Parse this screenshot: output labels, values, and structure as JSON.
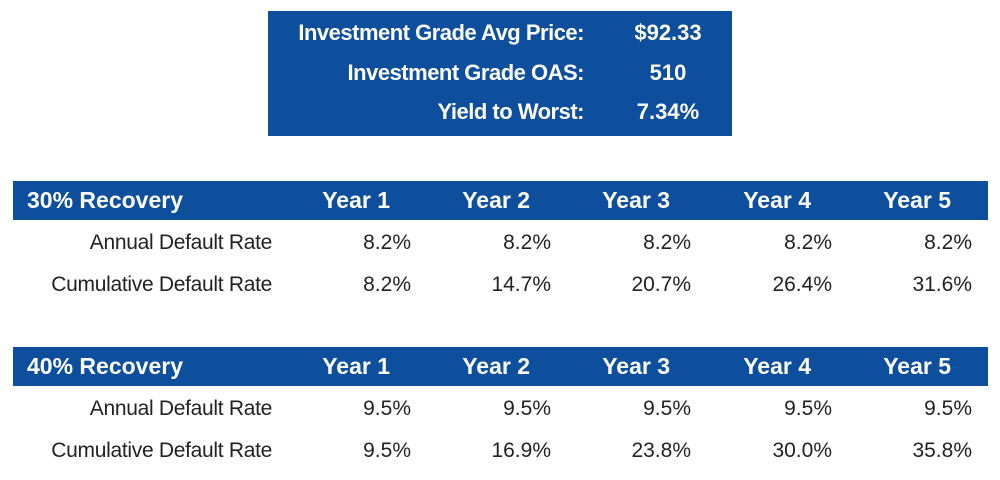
{
  "summary": {
    "rows": [
      {
        "label": "Investment Grade Avg Price:",
        "value": "$92.33"
      },
      {
        "label": "Investment Grade OAS:",
        "value": "510"
      },
      {
        "label": "Yield to Worst:",
        "value": "7.34%"
      }
    ]
  },
  "tables": [
    {
      "title": "30% Recovery",
      "years": [
        "Year 1",
        "Year 2",
        "Year 3",
        "Year 4",
        "Year 5"
      ],
      "rows": [
        {
          "label": "Annual Default Rate",
          "values": [
            "8.2%",
            "8.2%",
            "8.2%",
            "8.2%",
            "8.2%"
          ]
        },
        {
          "label": "Cumulative Default Rate",
          "values": [
            "8.2%",
            "14.7%",
            "20.7%",
            "26.4%",
            "31.6%"
          ]
        }
      ]
    },
    {
      "title": "40% Recovery",
      "years": [
        "Year 1",
        "Year 2",
        "Year 3",
        "Year 4",
        "Year 5"
      ],
      "rows": [
        {
          "label": "Annual Default Rate",
          "values": [
            "9.5%",
            "9.5%",
            "9.5%",
            "9.5%",
            "9.5%"
          ]
        },
        {
          "label": "Cumulative Default Rate",
          "values": [
            "9.5%",
            "16.9%",
            "23.8%",
            "30.0%",
            "35.8%"
          ]
        }
      ]
    }
  ],
  "colors": {
    "header_blue": "#0d4f9c",
    "header_text": "#ffffff",
    "body_text": "#222222"
  }
}
